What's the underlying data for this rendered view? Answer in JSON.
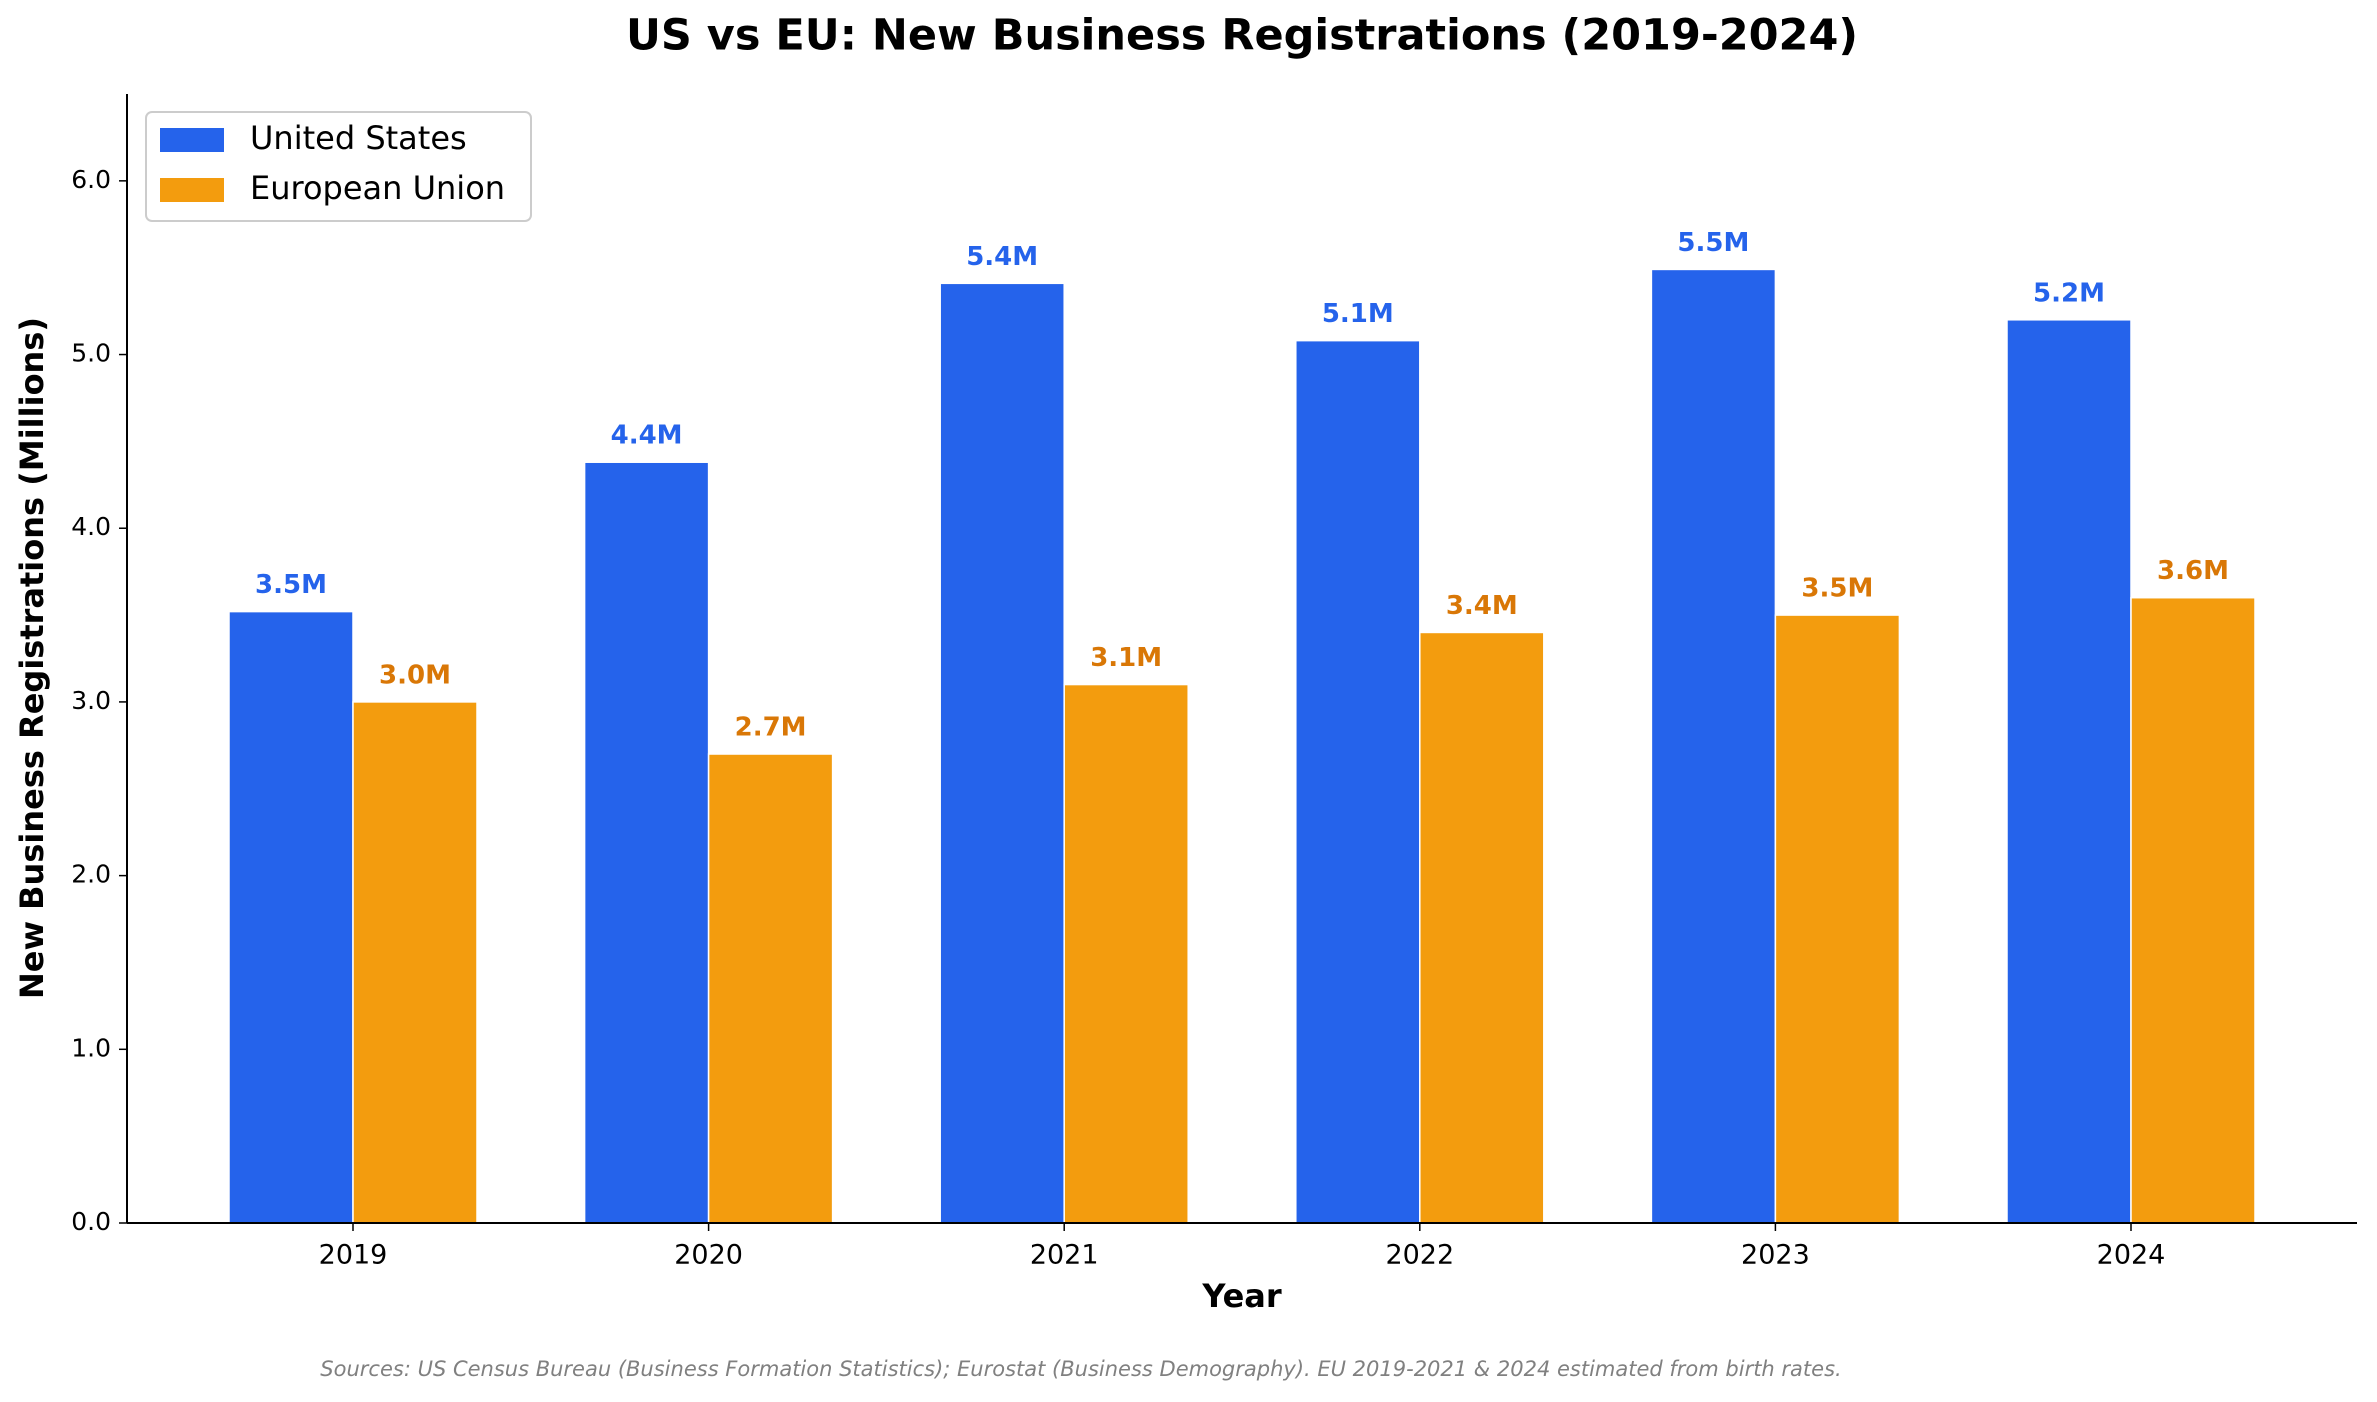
{
  "chart_data": {
    "type": "bar",
    "title": "US vs EU: New Business Registrations (2019-2024)",
    "xlabel": "Year",
    "ylabel": "New Business Registrations (Millions)",
    "footnote": "Sources: US Census Bureau (Business Formation Statistics); Eurostat (Business Demography). EU 2019-2021 & 2024 estimated from birth rates.",
    "categories": [
      "2019",
      "2020",
      "2021",
      "2022",
      "2023",
      "2024"
    ],
    "series": [
      {
        "name": "United States",
        "color": "#2563eb",
        "label_color": "#2563eb",
        "values": [
          3.52,
          4.38,
          5.41,
          5.08,
          5.49,
          5.2
        ],
        "value_labels": [
          "3.5M",
          "4.4M",
          "5.4M",
          "5.1M",
          "5.5M",
          "5.2M"
        ]
      },
      {
        "name": "European Union",
        "color": "#f39c0e",
        "label_color": "#d97706",
        "values": [
          3.0,
          2.7,
          3.1,
          3.4,
          3.5,
          3.6
        ],
        "value_labels": [
          "3.0M",
          "2.7M",
          "3.1M",
          "3.4M",
          "3.5M",
          "3.6M"
        ]
      }
    ],
    "ylim": [
      0,
      6.5
    ],
    "yticks": [
      {
        "value": 0,
        "label": "0.0"
      },
      {
        "value": 1,
        "label": "1.0"
      },
      {
        "value": 2,
        "label": "2.0"
      },
      {
        "value": 3,
        "label": "3.0"
      },
      {
        "value": 4,
        "label": "4.0"
      },
      {
        "value": 5,
        "label": "5.0"
      },
      {
        "value": 6,
        "label": "6.0"
      }
    ],
    "legend": "upper left",
    "grid": false
  }
}
